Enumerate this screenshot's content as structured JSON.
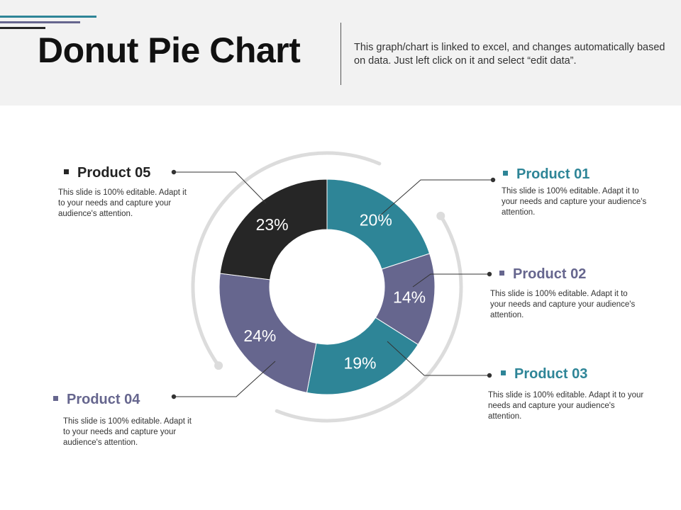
{
  "header": {
    "title": "Donut Pie Chart",
    "description": "This graph/chart is linked to excel, and changes automatically based on data. Just left click on it and select “edit data”."
  },
  "colors": {
    "header_bg": "#f2f2f2",
    "accent_teal": "#2e8597",
    "accent_gray": "#66668e",
    "dark": "#262626",
    "ring": "#dcdcdc",
    "connector": "#333333"
  },
  "chart_data": {
    "type": "pie",
    "donut": true,
    "categories": [
      "Product 01",
      "Product 02",
      "Product 03",
      "Product 04",
      "Product 05"
    ],
    "values": [
      20,
      14,
      19,
      24,
      23
    ],
    "labels": [
      "20%",
      "14%",
      "19%",
      "24%",
      "23%"
    ],
    "colors": [
      "#2e8597",
      "#66668e",
      "#2e8597",
      "#66668e",
      "#262626"
    ],
    "legend": [
      {
        "title": "Product 01",
        "color": "#2e8597",
        "text": "This slide is 100% editable. Adapt it to your needs and capture your audience's attention."
      },
      {
        "title": "Product 02",
        "color": "#66668e",
        "text": "This slide is 100% editable. Adapt it to your needs and capture your audience's attention."
      },
      {
        "title": "Product 03",
        "color": "#2e8597",
        "text": "This slide is 100% editable. Adapt it to your needs and capture your audience's attention."
      },
      {
        "title": "Product 04",
        "color": "#66668e",
        "text": "This slide is 100% editable. Adapt it to your needs and capture your audience's attention."
      },
      {
        "title": "Product 05",
        "color": "#262626",
        "text": "This slide is 100% editable. Adapt it to your needs and capture your audience's attention."
      }
    ]
  }
}
